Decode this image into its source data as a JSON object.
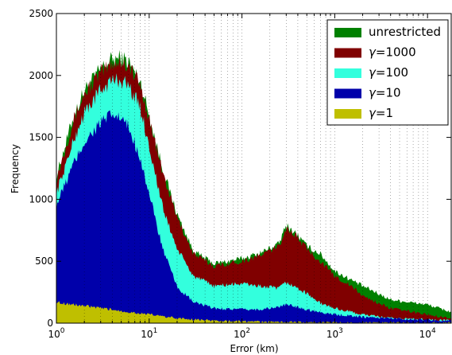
{
  "chart_data": {
    "type": "area",
    "xlabel": "Error (km)",
    "ylabel": "Frequency",
    "x_scale": "log",
    "xlim": [
      1,
      18000
    ],
    "ylim": [
      0,
      2500
    ],
    "grid": "vertical dotted (x only)",
    "legend_position": "upper right",
    "x_ticks": [
      {
        "base": "10",
        "exp": "0"
      },
      {
        "base": "10",
        "exp": "1"
      },
      {
        "base": "10",
        "exp": "2"
      },
      {
        "base": "10",
        "exp": "3"
      },
      {
        "base": "10",
        "exp": "4"
      }
    ],
    "y_ticks": [
      "0",
      "500",
      "1000",
      "1500",
      "2000",
      "2500"
    ],
    "x": [
      1,
      1.5,
      2,
      3,
      4,
      5,
      6,
      8,
      10,
      14,
      20,
      30,
      50,
      100,
      150,
      250,
      300,
      400,
      500,
      700,
      1000,
      1500,
      2000,
      4000,
      10000,
      18000
    ],
    "series": [
      {
        "name": "unrestricted",
        "color": "#008000",
        "values": [
          1180,
          1650,
          1880,
          2050,
          2130,
          2140,
          2110,
          1950,
          1680,
          1240,
          880,
          580,
          480,
          520,
          560,
          640,
          790,
          710,
          620,
          560,
          420,
          350,
          300,
          190,
          150,
          90
        ]
      },
      {
        "name": "γ=1000",
        "color": "#800000",
        "values": [
          1160,
          1620,
          1850,
          2020,
          2100,
          2110,
          2080,
          1920,
          1650,
          1210,
          850,
          560,
          460,
          500,
          540,
          620,
          770,
          690,
          600,
          500,
          380,
          300,
          220,
          120,
          70,
          40
        ]
      },
      {
        "name": "γ=100",
        "color": "#33ffdd",
        "values": [
          1050,
          1450,
          1700,
          1880,
          1960,
          1960,
          1920,
          1740,
          1430,
          930,
          600,
          380,
          300,
          320,
          300,
          280,
          330,
          280,
          240,
          160,
          120,
          90,
          70,
          40,
          30,
          20
        ]
      },
      {
        "name": "γ=10",
        "color": "#0000aa",
        "values": [
          950,
          1270,
          1460,
          1620,
          1680,
          1650,
          1580,
          1340,
          1040,
          600,
          290,
          170,
          120,
          110,
          110,
          130,
          150,
          130,
          110,
          90,
          70,
          60,
          50,
          40,
          25,
          20
        ]
      },
      {
        "name": "γ=1",
        "color": "#bfbf00",
        "values": [
          170,
          150,
          140,
          120,
          110,
          100,
          90,
          80,
          70,
          55,
          40,
          30,
          20,
          15,
          12,
          10,
          10,
          8,
          7,
          5,
          4,
          3,
          3,
          2,
          2,
          1
        ]
      }
    ]
  }
}
